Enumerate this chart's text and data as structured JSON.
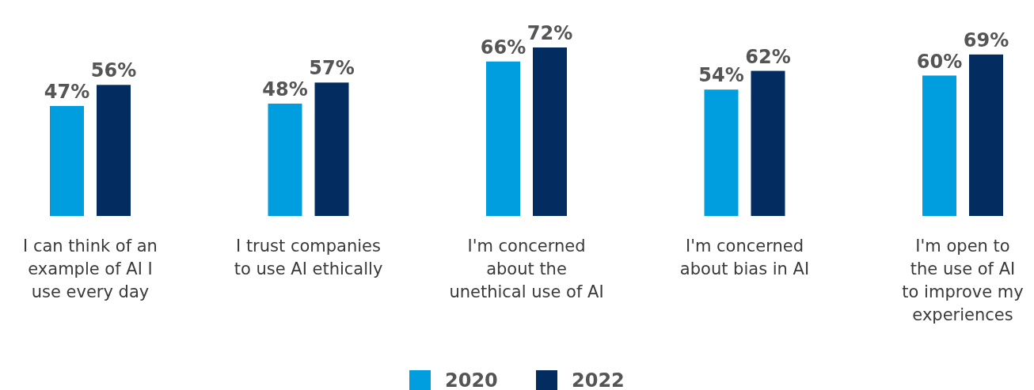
{
  "chart_data": {
    "type": "bar",
    "categories": [
      "I can think of an\nexample of AI I\nuse every day",
      "I trust companies\nto use AI ethically",
      "I'm concerned\nabout the\nunethical use of AI",
      "I'm concerned\nabout bias in AI",
      "I'm open to\nthe use of AI\nto improve my\nexperiences"
    ],
    "series": [
      {
        "name": "2020",
        "color": "#009ddf",
        "values": [
          47,
          48,
          66,
          54,
          60
        ],
        "value_labels": [
          "47%",
          "48%",
          "66%",
          "54%",
          "60%"
        ]
      },
      {
        "name": "2022",
        "color": "#032d60",
        "values": [
          56,
          57,
          72,
          62,
          69
        ],
        "value_labels": [
          "56%",
          "57%",
          "72%",
          "62%",
          "69%"
        ]
      }
    ],
    "legend": "bottom"
  }
}
